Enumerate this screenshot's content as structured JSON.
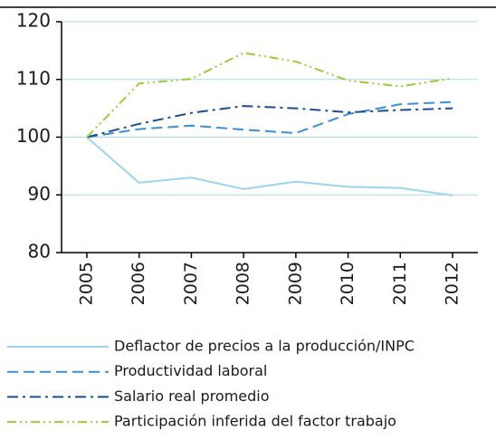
{
  "chart_data": {
    "type": "line",
    "categories": [
      "2005",
      "2006",
      "2007",
      "2008",
      "2009",
      "2010",
      "2011",
      "2012"
    ],
    "series": [
      {
        "name": "Deflactor de precios a la producción/INPC",
        "color": "#9dd3ee",
        "dash": "solid",
        "values": [
          100,
          92.1,
          93,
          91,
          92.3,
          91.4,
          91.2,
          89.9
        ]
      },
      {
        "name": "Productividad laboral",
        "color": "#3a8fd8",
        "dash": "dashed",
        "values": [
          100,
          101.4,
          102,
          101.3,
          100.7,
          104,
          105.7,
          106.1
        ]
      },
      {
        "name": "Salario real promedio",
        "color": "#1c4d94",
        "dash": "dashdot",
        "values": [
          100,
          102.3,
          104.2,
          105.4,
          105,
          104.3,
          104.7,
          105
        ]
      },
      {
        "name": "Participación inferida del factor trabajo",
        "color": "#9acd32",
        "dash": "dashdotdot",
        "values": [
          100,
          109.3,
          110.1,
          114.6,
          113.1,
          109.8,
          108.8,
          110.2
        ]
      }
    ],
    "ylim": [
      80,
      120
    ],
    "yticks": [
      80,
      90,
      100,
      110,
      120
    ],
    "grid": true
  }
}
